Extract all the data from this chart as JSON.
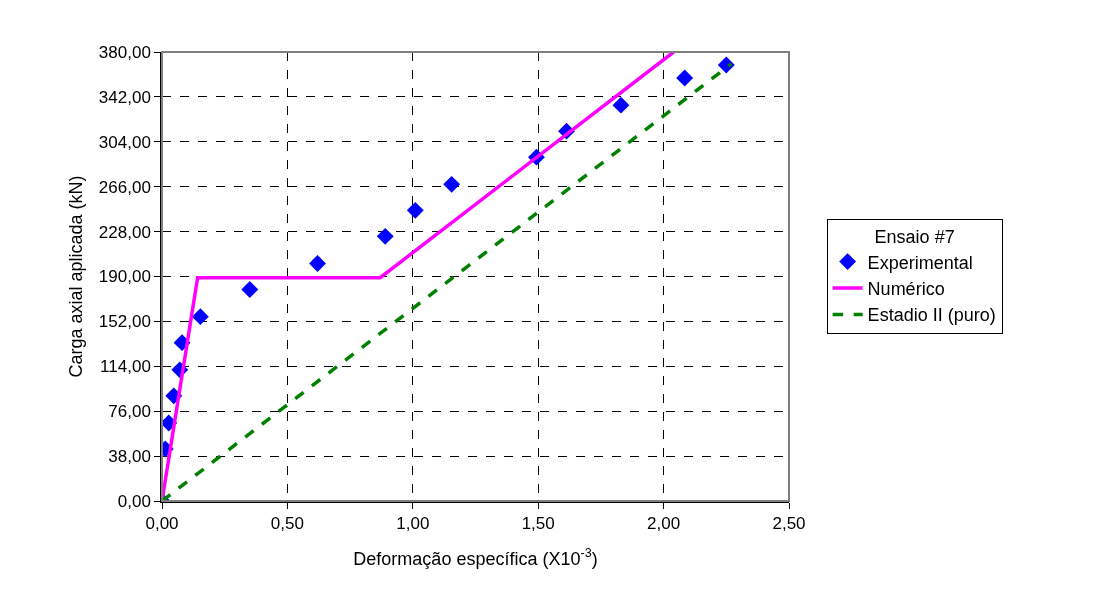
{
  "chart_data": {
    "type": "scatter",
    "xlabel": "Deformação específica (X10$^{-3}$)",
    "ylabel": "Carga axial aplicada (kN)",
    "legend_title": "Ensaio #7",
    "legend": "right",
    "grid": true,
    "xlim": [
      0,
      2.5
    ],
    "ylim": [
      0,
      380
    ],
    "xticks": [
      {
        "value": 0,
        "label": "0,00"
      },
      {
        "value": 0.5,
        "label": "0,50"
      },
      {
        "value": 1,
        "label": "1,00"
      },
      {
        "value": 1.5,
        "label": "1,50"
      },
      {
        "value": 2,
        "label": "2,00"
      },
      {
        "value": 2.5,
        "label": "2,50"
      }
    ],
    "yticks": [
      {
        "value": 0,
        "label": "0,00"
      },
      {
        "value": 38,
        "label": "38,00"
      },
      {
        "value": 76,
        "label": "76,00"
      },
      {
        "value": 114,
        "label": "114,00"
      },
      {
        "value": 152,
        "label": "152,00"
      },
      {
        "value": 190,
        "label": "190,00"
      },
      {
        "value": 228,
        "label": "228,00"
      },
      {
        "value": 266,
        "label": "266,00"
      },
      {
        "value": 304,
        "label": "304,00"
      },
      {
        "value": 342,
        "label": "342,00"
      },
      {
        "value": 380,
        "label": "380,00"
      }
    ],
    "series": [
      {
        "name": "Experimental",
        "marker": "diamond",
        "color": "#0000ff",
        "x": [
          0,
          0.013,
          0.027,
          0.047,
          0.071,
          0.08,
          0.153,
          0.35,
          0.62,
          0.89,
          1.01,
          1.155,
          1.493,
          1.613,
          1.83,
          2.084,
          2.25
        ],
        "values": [
          0,
          44,
          66,
          89,
          111,
          134,
          156,
          179,
          201,
          224,
          246,
          268,
          291,
          313,
          335,
          358,
          369
        ]
      },
      {
        "name": "Numérico",
        "type": "line",
        "line_style": "solid",
        "color": "#ff00ff",
        "x": [
          0,
          0.142,
          0.87,
          2.04
        ],
        "values": [
          0,
          189,
          189,
          380
        ]
      },
      {
        "name": "Estadio II (puro)",
        "type": "line",
        "line_style": "dashed",
        "color": "#008000",
        "x": [
          0,
          2.27
        ],
        "values": [
          0,
          370
        ]
      }
    ]
  }
}
